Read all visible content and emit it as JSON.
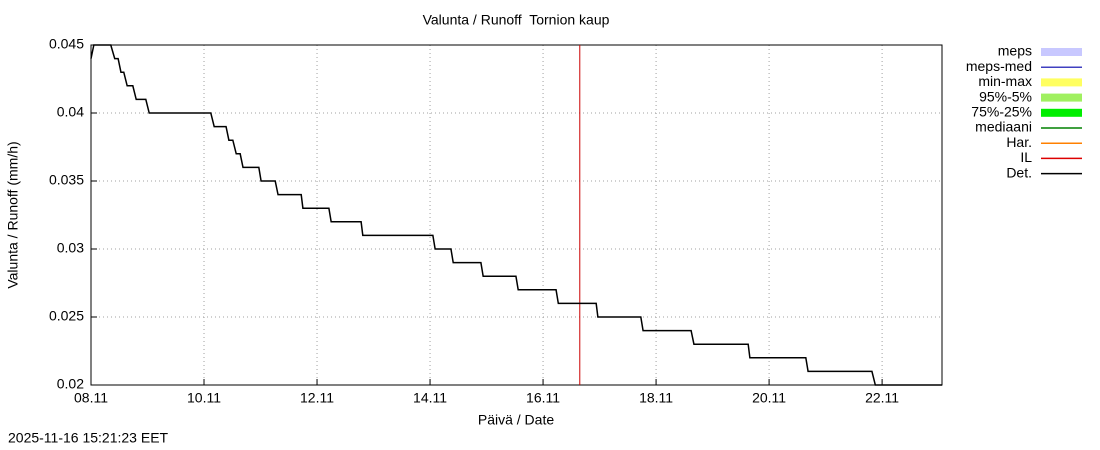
{
  "chart_data": {
    "type": "line",
    "title": "Valunta / Runoff  Tornion kaup",
    "x_label": "Päivä / Date",
    "y_label": "Valunta / Runoff (mm/h)",
    "timestamp": "2025-11-16 15:21:23 EET",
    "xlim": [
      0,
      15.06
    ],
    "ylim": [
      0.02,
      0.045
    ],
    "xticks": [
      {
        "value": 0,
        "label": "08.11"
      },
      {
        "value": 2,
        "label": "10.11"
      },
      {
        "value": 4,
        "label": "12.11"
      },
      {
        "value": 6,
        "label": "14.11"
      },
      {
        "value": 8,
        "label": "16.11"
      },
      {
        "value": 10,
        "label": "18.11"
      },
      {
        "value": 12,
        "label": "20.11"
      },
      {
        "value": 14,
        "label": "22.11"
      }
    ],
    "yticks": [
      0.02,
      0.025,
      0.03,
      0.035,
      0.04,
      0.045
    ],
    "grid": true,
    "now_x": 8.65,
    "now_color": "#cc0000",
    "legend": [
      {
        "name": "meps",
        "color": "#c8c8ff",
        "wide": true
      },
      {
        "name": "meps-med",
        "color": "#4040c0",
        "wide": false
      },
      {
        "name": "min-max",
        "color": "#ffff60",
        "wide": true
      },
      {
        "name": "95%-5%",
        "color": "#a0f060",
        "wide": true
      },
      {
        "name": "75%-25%",
        "color": "#00ee00",
        "wide": true
      },
      {
        "name": "mediaani",
        "color": "#008000",
        "wide": false
      },
      {
        "name": "Har.",
        "color": "#ff8000",
        "wide": false
      },
      {
        "name": "IL",
        "color": "#dd0000",
        "wide": false
      },
      {
        "name": "Det.",
        "color": "#000000",
        "wide": false
      }
    ],
    "series": [
      {
        "name": "Det.",
        "color": "#000000",
        "x": [
          0,
          0.05,
          0.35,
          0.42,
          0.48,
          0.53,
          0.58,
          0.64,
          0.74,
          0.8,
          0.97,
          1.03,
          2.12,
          2.18,
          2.39,
          2.44,
          2.51,
          2.57,
          2.64,
          2.69,
          2.97,
          3.01,
          3.26,
          3.31,
          3.72,
          3.75,
          4.21,
          4.25,
          4.78,
          4.81,
          6.05,
          6.09,
          6.37,
          6.41,
          6.9,
          6.94,
          7.52,
          7.56,
          8.23,
          8.27,
          8.94,
          8.97,
          9.73,
          9.77,
          10.62,
          10.67,
          11.63,
          11.66,
          12.65,
          12.69,
          13.82,
          13.88,
          15.06
        ],
        "values": [
          0.044,
          0.045,
          0.045,
          0.044,
          0.044,
          0.043,
          0.043,
          0.042,
          0.042,
          0.041,
          0.041,
          0.04,
          0.04,
          0.039,
          0.039,
          0.038,
          0.038,
          0.037,
          0.037,
          0.036,
          0.036,
          0.035,
          0.035,
          0.034,
          0.034,
          0.033,
          0.033,
          0.032,
          0.032,
          0.031,
          0.031,
          0.03,
          0.03,
          0.029,
          0.029,
          0.028,
          0.028,
          0.027,
          0.027,
          0.026,
          0.026,
          0.025,
          0.025,
          0.024,
          0.024,
          0.023,
          0.023,
          0.022,
          0.022,
          0.021,
          0.021,
          0.02,
          0.02
        ]
      }
    ]
  }
}
